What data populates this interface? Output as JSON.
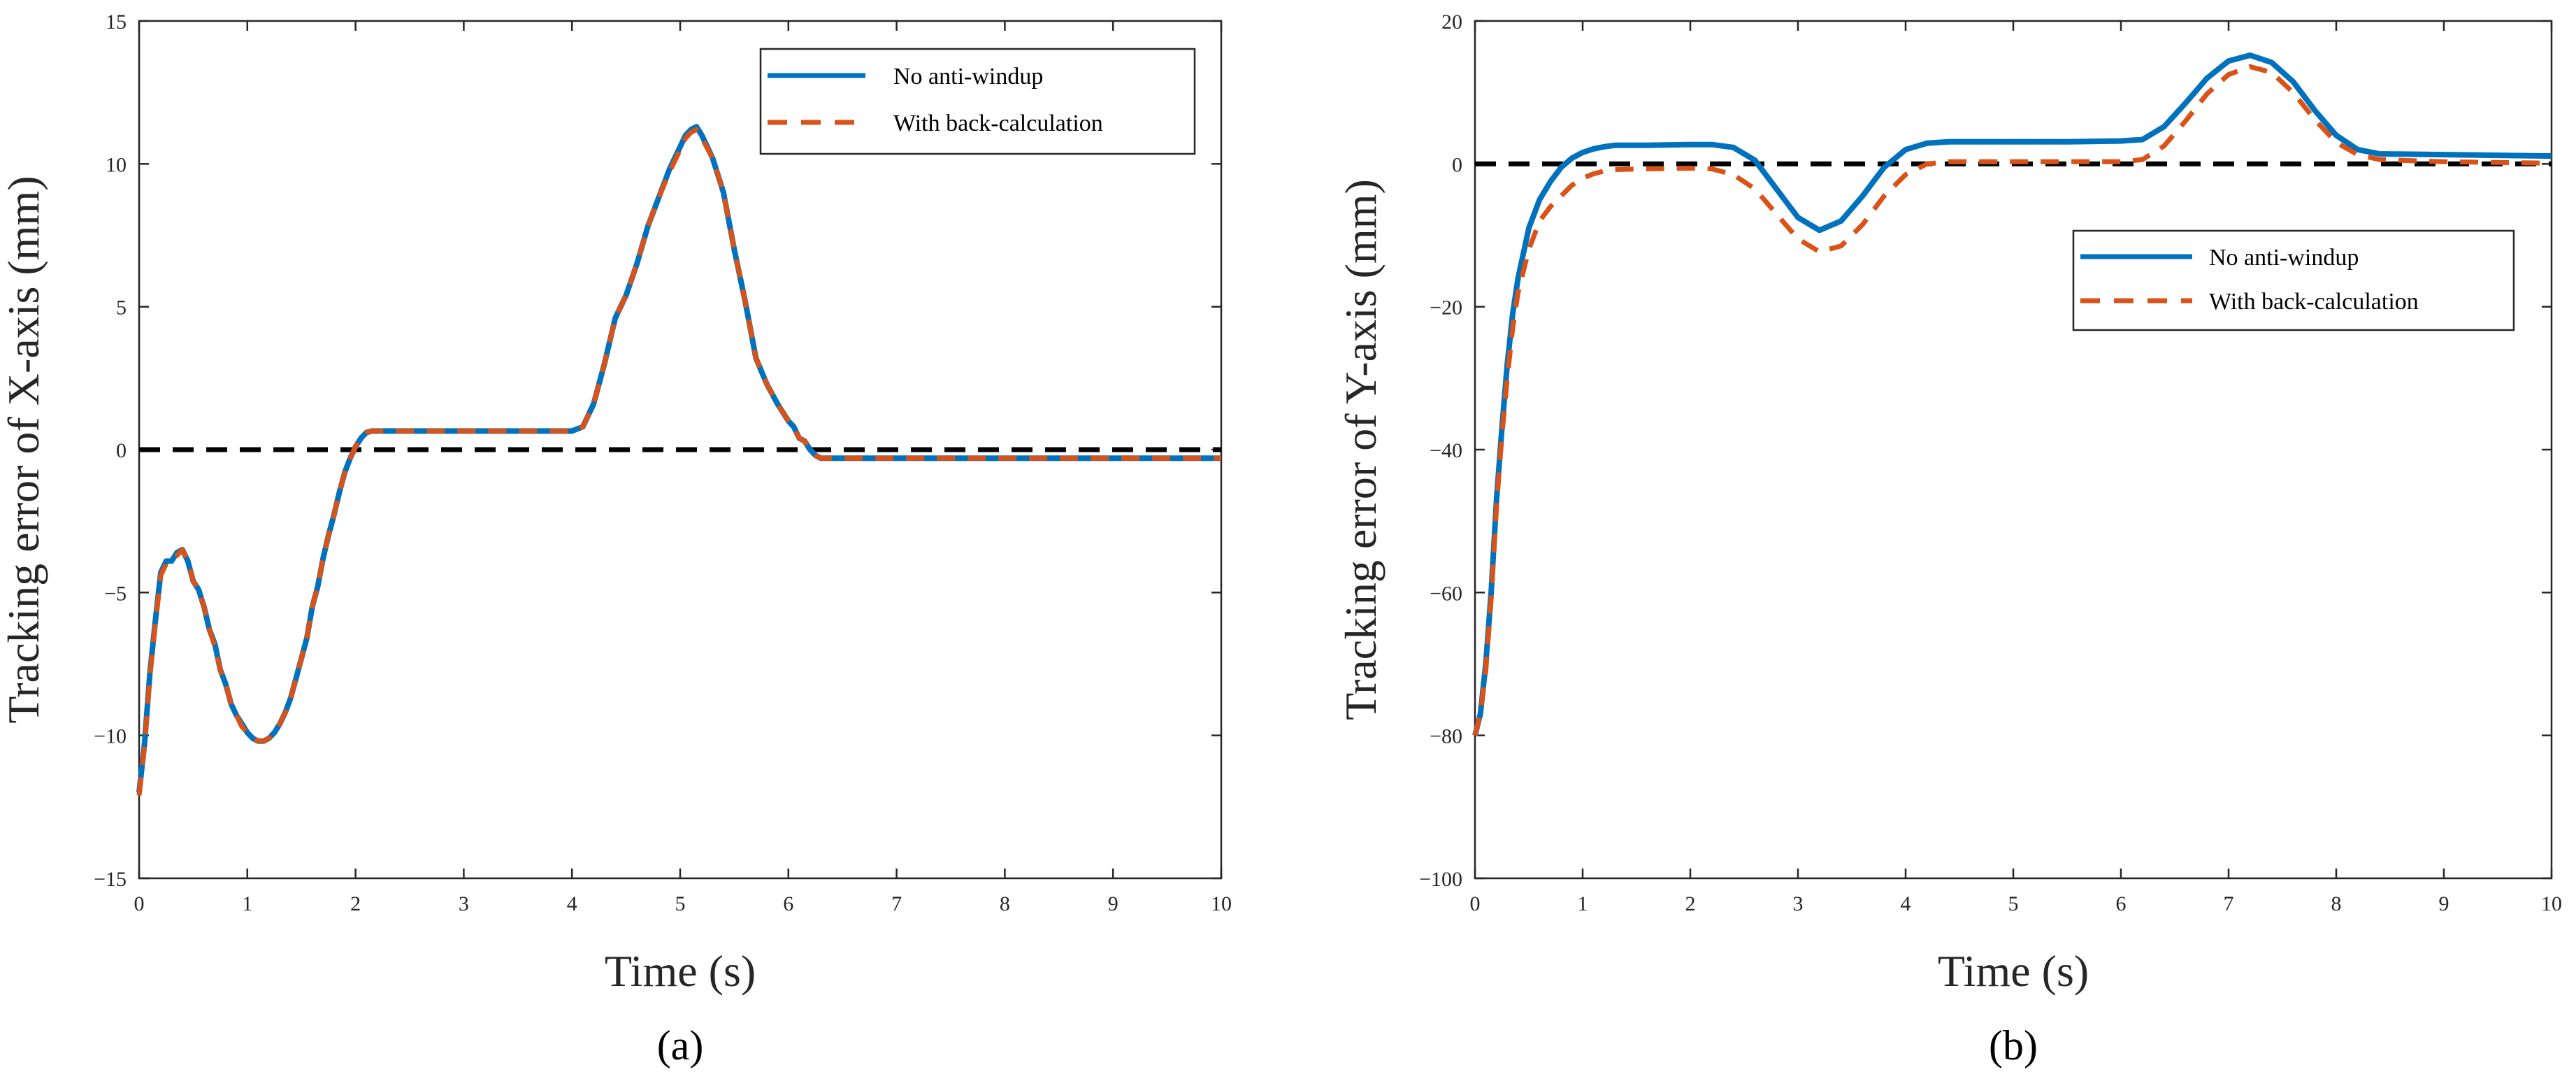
{
  "chart_data": [
    {
      "type": "line",
      "panel_label": "(a)",
      "xlabel": "Time (s)",
      "ylabel": "Tracking error of X-axis  (mm)",
      "xlim": [
        0,
        10
      ],
      "ylim": [
        -15,
        15
      ],
      "xticks": [
        0,
        1,
        2,
        3,
        4,
        5,
        6,
        7,
        8,
        9,
        10
      ],
      "yticks": [
        -15,
        -10,
        -5,
        0,
        5,
        10,
        15
      ],
      "legend": {
        "position": "top-right",
        "entries": [
          "No anti-windup",
          "With back-calculation"
        ]
      },
      "reference_line": {
        "y": 0,
        "style": "dashed",
        "color": "#000000"
      },
      "series": [
        {
          "name": "No anti-windup",
          "color": "#0072BD",
          "style": "solid",
          "x": [
            0,
            0.05,
            0.1,
            0.15,
            0.2,
            0.25,
            0.3,
            0.35,
            0.4,
            0.45,
            0.5,
            0.55,
            0.6,
            0.65,
            0.7,
            0.75,
            0.8,
            0.85,
            0.9,
            0.95,
            1.0,
            1.05,
            1.1,
            1.15,
            1.2,
            1.25,
            1.3,
            1.35,
            1.4,
            1.45,
            1.5,
            1.55,
            1.6,
            1.65,
            1.7,
            1.75,
            1.8,
            1.85,
            1.9,
            1.95,
            2.0,
            2.05,
            2.1,
            2.15,
            2.2,
            4.0,
            4.1,
            4.2,
            4.3,
            4.4,
            4.5,
            4.6,
            4.7,
            4.8,
            4.9,
            5.0,
            5.05,
            5.1,
            5.15,
            5.2,
            5.3,
            5.4,
            5.5,
            5.6,
            5.7,
            5.8,
            5.9,
            6.0,
            6.05,
            6.1,
            6.15,
            6.2,
            6.25,
            6.3,
            10.0
          ],
          "values": [
            -12,
            -10.3,
            -7.8,
            -6,
            -4.3,
            -3.9,
            -3.9,
            -3.6,
            -3.5,
            -3.9,
            -4.6,
            -4.9,
            -5.5,
            -6.3,
            -6.8,
            -7.7,
            -8.2,
            -8.9,
            -9.3,
            -9.6,
            -9.9,
            -10.1,
            -10.2,
            -10.2,
            -10.1,
            -9.9,
            -9.6,
            -9.2,
            -8.7,
            -8.0,
            -7.3,
            -6.6,
            -5.5,
            -4.8,
            -3.8,
            -3.0,
            -2.3,
            -1.5,
            -0.8,
            -0.3,
            0.1,
            0.4,
            0.6,
            0.65,
            0.65,
            0.65,
            0.8,
            1.6,
            3.0,
            4.6,
            5.4,
            6.5,
            7.8,
            8.8,
            9.8,
            10.6,
            11.0,
            11.2,
            11.3,
            11.0,
            10.2,
            9.0,
            7.0,
            5.2,
            3.2,
            2.3,
            1.6,
            1.0,
            0.8,
            0.4,
            0.3,
            0.0,
            -0.2,
            -0.3,
            -0.3
          ]
        },
        {
          "name": "With back-calculation",
          "color": "#D95319",
          "style": "dashed",
          "x": [
            0,
            0.05,
            0.1,
            0.15,
            0.2,
            0.25,
            0.3,
            0.35,
            0.4,
            0.45,
            0.5,
            0.55,
            0.6,
            0.65,
            0.7,
            0.75,
            0.8,
            0.85,
            0.9,
            0.95,
            1.0,
            1.05,
            1.1,
            1.15,
            1.2,
            1.25,
            1.3,
            1.35,
            1.4,
            1.45,
            1.5,
            1.55,
            1.6,
            1.65,
            1.7,
            1.75,
            1.8,
            1.85,
            1.9,
            1.95,
            2.0,
            2.05,
            2.1,
            2.15,
            2.2,
            4.0,
            4.1,
            4.2,
            4.3,
            4.4,
            4.5,
            4.6,
            4.7,
            4.8,
            4.9,
            5.0,
            5.05,
            5.1,
            5.15,
            5.2,
            5.3,
            5.4,
            5.5,
            5.6,
            5.7,
            5.8,
            5.9,
            6.0,
            6.05,
            6.1,
            6.15,
            6.2,
            6.25,
            6.3,
            10.0
          ],
          "values": [
            -12.1,
            -10.4,
            -7.9,
            -6.1,
            -4.4,
            -4.0,
            -3.9,
            -3.7,
            -3.5,
            -3.9,
            -4.6,
            -4.9,
            -5.5,
            -6.3,
            -6.9,
            -7.7,
            -8.2,
            -8.9,
            -9.3,
            -9.7,
            -9.9,
            -10.1,
            -10.2,
            -10.2,
            -10.1,
            -9.9,
            -9.6,
            -9.2,
            -8.7,
            -8.0,
            -7.3,
            -6.6,
            -5.5,
            -4.8,
            -3.8,
            -3.0,
            -2.3,
            -1.5,
            -0.8,
            -0.3,
            0.1,
            0.4,
            0.6,
            0.65,
            0.65,
            0.65,
            0.8,
            1.6,
            3.0,
            4.6,
            5.4,
            6.5,
            7.8,
            8.8,
            9.7,
            10.5,
            10.9,
            11.1,
            11.2,
            10.9,
            10.2,
            9.0,
            7.0,
            5.2,
            3.2,
            2.3,
            1.6,
            1.0,
            0.8,
            0.4,
            0.3,
            0.0,
            -0.2,
            -0.3,
            -0.3
          ]
        }
      ]
    },
    {
      "type": "line",
      "panel_label": "(b)",
      "xlabel": "Time (s)",
      "ylabel": "Tracking error of Y-axis  (mm)",
      "xlim": [
        0,
        10
      ],
      "ylim": [
        -100,
        20
      ],
      "xticks": [
        0,
        1,
        2,
        3,
        4,
        5,
        6,
        7,
        8,
        9,
        10
      ],
      "yticks": [
        -100,
        -80,
        -60,
        -40,
        -20,
        0,
        20
      ],
      "legend": {
        "position": "center-right",
        "entries": [
          "No anti-windup",
          "With back-calculation"
        ]
      },
      "reference_line": {
        "y": 0,
        "style": "dashed",
        "color": "#000000"
      },
      "series": [
        {
          "name": "No anti-windup",
          "color": "#0072BD",
          "style": "solid",
          "x": [
            0,
            0.05,
            0.1,
            0.15,
            0.2,
            0.25,
            0.3,
            0.35,
            0.4,
            0.5,
            0.6,
            0.7,
            0.8,
            0.9,
            1.0,
            1.1,
            1.2,
            1.3,
            1.6,
            2.0,
            2.2,
            2.4,
            2.6,
            2.8,
            3.0,
            3.2,
            3.4,
            3.6,
            3.8,
            4.0,
            4.2,
            4.4,
            4.8,
            5.5,
            6.0,
            6.2,
            6.4,
            6.6,
            6.8,
            7.0,
            7.2,
            7.4,
            7.6,
            7.8,
            8.0,
            8.2,
            8.4,
            9.0,
            9.5,
            10.0
          ],
          "values": [
            -80,
            -77,
            -70,
            -60,
            -47,
            -37,
            -28,
            -21,
            -16,
            -9,
            -5,
            -2.5,
            -0.5,
            0.8,
            1.6,
            2.1,
            2.4,
            2.6,
            2.6,
            2.7,
            2.7,
            2.3,
            0.5,
            -3.5,
            -7.5,
            -9.3,
            -8,
            -4.5,
            -0.5,
            2,
            2.9,
            3.1,
            3.1,
            3.1,
            3.2,
            3.4,
            5.2,
            8.5,
            12,
            14.4,
            15.2,
            14.2,
            11.5,
            7.5,
            4,
            2,
            1.4,
            1.3,
            1.2,
            1.1
          ]
        },
        {
          "name": "With back-calculation",
          "color": "#D95319",
          "style": "dashed",
          "x": [
            0,
            0.05,
            0.1,
            0.15,
            0.2,
            0.25,
            0.3,
            0.35,
            0.4,
            0.5,
            0.6,
            0.7,
            0.8,
            0.9,
            1.0,
            1.1,
            1.2,
            1.3,
            1.6,
            2.0,
            2.2,
            2.4,
            2.6,
            2.8,
            3.0,
            3.2,
            3.4,
            3.6,
            3.8,
            4.0,
            4.2,
            4.4,
            4.8,
            5.5,
            6.0,
            6.2,
            6.4,
            6.6,
            6.8,
            7.0,
            7.2,
            7.4,
            7.6,
            7.8,
            8.0,
            8.2,
            8.4,
            9.0,
            9.5,
            10.0
          ],
          "values": [
            -80,
            -77,
            -71,
            -61,
            -48,
            -38,
            -30,
            -23,
            -18,
            -12,
            -8,
            -6,
            -4.5,
            -3,
            -2,
            -1.4,
            -1,
            -0.8,
            -0.7,
            -0.6,
            -0.7,
            -1.5,
            -3.5,
            -7,
            -10.5,
            -12.3,
            -11.5,
            -8.5,
            -4.5,
            -1.5,
            0,
            0.3,
            0.3,
            0.3,
            0.3,
            0.6,
            2.5,
            6,
            9.8,
            12.5,
            13.6,
            12.8,
            10,
            6.2,
            3,
            1.3,
            0.6,
            0.3,
            0.2,
            0.1
          ]
        }
      ]
    }
  ]
}
